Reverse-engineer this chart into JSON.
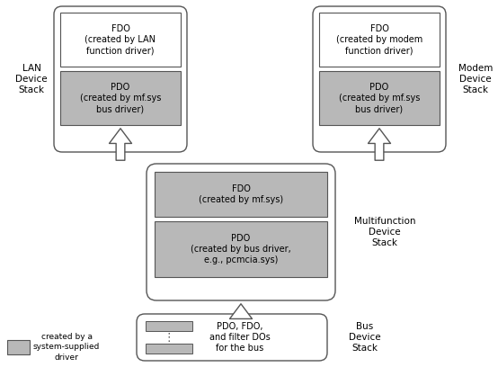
{
  "bg_color": "#ffffff",
  "box_color_white": "#ffffff",
  "box_color_gray": "#b8b8b8",
  "border_color": "#555555",
  "text_color": "#000000",
  "figsize": [
    5.54,
    4.18
  ],
  "dpi": 100,
  "lan_stack_label": "LAN\nDevice\nStack",
  "modem_stack_label": "Modem\nDevice\nStack",
  "multi_stack_label": "Multifunction\nDevice\nStack",
  "bus_stack_label": "Bus\nDevice\nStack",
  "legend_label": "created by a\nsystem-supplied\ndriver",
  "lan_fdo_text": "FDO\n(created by LAN\nfunction driver)",
  "lan_pdo_text": "PDO\n(created by mf.sys\nbus driver)",
  "modem_fdo_text": "FDO\n(created by modem\nfunction driver)",
  "modem_pdo_text": "PDO\n(created by mf.sys\nbus driver)",
  "mf_fdo_text": "FDO\n(created by mf.sys)",
  "mf_pdo_text": "PDO\n(created by bus driver,\ne.g., pcmcia.sys)",
  "bus_text": "PDO, FDO,\nand filter DOs\nfor the bus"
}
